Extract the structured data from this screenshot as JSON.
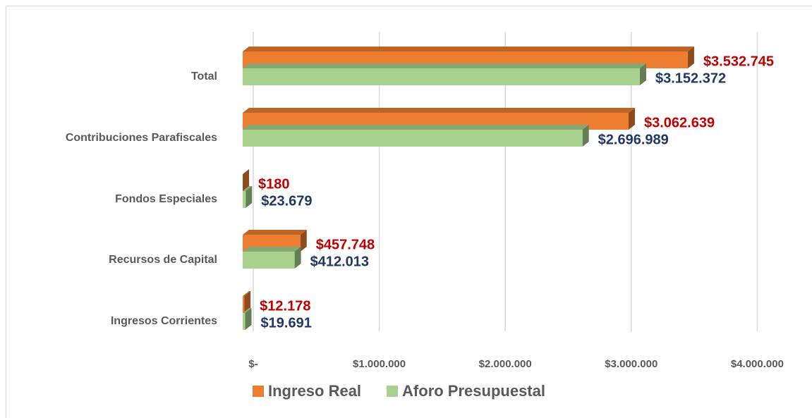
{
  "chart_data": {
    "type": "bar3d_horizontal",
    "categories": [
      "Total",
      "Contribuciones Parafiscales",
      "Fondos Especiales",
      "Recursos de Capital",
      "Ingresos Corrientes"
    ],
    "series": [
      {
        "name": "Ingreso Real",
        "color": "#ed7d31",
        "label_color": "#c00000",
        "values": [
          3532745,
          3062639,
          180,
          457748,
          12178
        ],
        "value_labels": [
          "$3.532.745",
          "$3.062.639",
          "$180",
          "$457.748",
          "$12.178"
        ]
      },
      {
        "name": "Aforo Presupuestal",
        "color": "#a9d18e",
        "label_color": "#203864",
        "values": [
          3152372,
          2696989,
          23679,
          412013,
          19691
        ],
        "value_labels": [
          "$3.152.372",
          "$2.696.989",
          "$23.679",
          "$412.013",
          "$19.691"
        ]
      }
    ],
    "xlim": [
      0,
      4000000
    ],
    "xticks": [
      {
        "value": 0,
        "label": "$-"
      },
      {
        "value": 1000000,
        "label": "$1.000.000"
      },
      {
        "value": 2000000,
        "label": "$2.000.000"
      },
      {
        "value": 3000000,
        "label": "$3.000.000"
      },
      {
        "value": 4000000,
        "label": "$4.000.000"
      }
    ],
    "grid": true
  }
}
